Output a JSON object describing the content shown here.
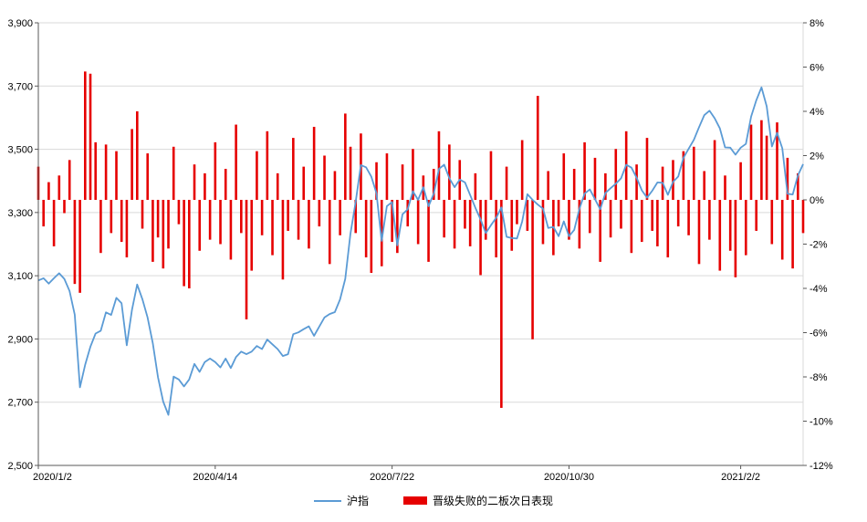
{
  "chart_data": {
    "type": "combo",
    "title": "",
    "x_tick_labels": [
      "2020/1/2",
      "2020/4/14",
      "2020/7/22",
      "2020/10/30",
      "2021/2/2"
    ],
    "x_tick_indices": [
      0,
      34,
      68,
      102,
      135
    ],
    "left_axis": {
      "min": 2500,
      "max": 3900,
      "step": 200,
      "tick_labels": [
        "2,500",
        "2,700",
        "2,900",
        "3,100",
        "3,300",
        "3,500",
        "3,700",
        "3,900"
      ]
    },
    "right_axis": {
      "min": -12,
      "max": 8,
      "step": 2,
      "tick_labels": [
        "-12%",
        "-10%",
        "-8%",
        "-6%",
        "-4%",
        "-2%",
        "0%",
        "2%",
        "4%",
        "6%",
        "8%"
      ]
    },
    "legend_position": "bottom",
    "grid": true,
    "style": {
      "background": "#ffffff",
      "grid_color": "#d9d9d9",
      "axis_color": "#595959",
      "line_color": "#5b9bd5",
      "bar_color": "#e60000"
    },
    "series": [
      {
        "name": "沪指",
        "type": "line",
        "axis": "left",
        "color": "#5b9bd5",
        "values": [
          3085,
          3092,
          3075,
          3092,
          3108,
          3090,
          3052,
          2977,
          2747,
          2818,
          2875,
          2917,
          2926,
          2984,
          2976,
          3030,
          3013,
          2880,
          2992,
          3072,
          3026,
          2968,
          2887,
          2779,
          2702,
          2660,
          2781,
          2772,
          2750,
          2772,
          2821,
          2796,
          2827,
          2838,
          2827,
          2810,
          2838,
          2808,
          2843,
          2860,
          2852,
          2860,
          2878,
          2868,
          2898,
          2883,
          2868,
          2846,
          2852,
          2915,
          2921,
          2931,
          2940,
          2910,
          2939,
          2968,
          2979,
          2985,
          3025,
          3090,
          3233,
          3333,
          3450,
          3443,
          3414,
          3361,
          3210,
          3320,
          3333,
          3196,
          3294,
          3310,
          3367,
          3340,
          3380,
          3320,
          3360,
          3438,
          3451,
          3408,
          3380,
          3404,
          3395,
          3355,
          3315,
          3278,
          3235,
          3260,
          3283,
          3316,
          3223,
          3219,
          3218,
          3272,
          3358,
          3340,
          3325,
          3312,
          3251,
          3254,
          3225,
          3272,
          3225,
          3245,
          3312,
          3360,
          3373,
          3342,
          3310,
          3362,
          3377,
          3391,
          3408,
          3451,
          3442,
          3410,
          3370,
          3347,
          3369,
          3395,
          3394,
          3356,
          3397,
          3414,
          3473,
          3502,
          3530,
          3570,
          3608,
          3622,
          3598,
          3566,
          3506,
          3505,
          3483,
          3505,
          3517,
          3603,
          3655,
          3696,
          3636,
          3509,
          3552,
          3503,
          3359,
          3357,
          3417,
          3453
        ]
      },
      {
        "name": "晋级失败的二板次日表现",
        "type": "bar",
        "axis": "right",
        "color": "#e60000",
        "values": [
          1.5,
          -1.2,
          0.8,
          -2.1,
          1.1,
          -0.6,
          1.8,
          -3.8,
          -4.2,
          5.8,
          5.7,
          2.6,
          -2.4,
          2.5,
          -1.5,
          2.2,
          -1.9,
          -2.6,
          3.2,
          4.0,
          -1.3,
          2.1,
          -2.8,
          -1.7,
          -3.1,
          -2.2,
          2.4,
          -1.1,
          -3.9,
          -4.0,
          1.6,
          -2.3,
          1.2,
          -1.8,
          2.6,
          -2.0,
          1.4,
          -2.7,
          3.4,
          -1.5,
          -5.4,
          -3.2,
          2.2,
          -1.6,
          3.1,
          -2.5,
          1.2,
          -3.6,
          -1.4,
          2.8,
          -1.8,
          1.5,
          -2.2,
          3.3,
          -1.2,
          2.0,
          -2.9,
          1.3,
          -1.6,
          3.9,
          2.4,
          -1.5,
          3.0,
          -2.6,
          -3.3,
          1.7,
          -3.0,
          2.1,
          -1.9,
          -2.4,
          1.6,
          -1.2,
          2.3,
          -2.0,
          1.1,
          -2.8,
          1.4,
          3.1,
          -1.7,
          2.5,
          -2.2,
          1.8,
          -1.3,
          -2.1,
          1.2,
          -3.4,
          -1.8,
          2.2,
          -2.6,
          -9.4,
          1.5,
          -2.3,
          -1.1,
          2.7,
          -1.4,
          -6.3,
          4.7,
          -2.0,
          1.3,
          -2.5,
          -1.2,
          2.1,
          -1.8,
          1.4,
          -2.2,
          2.6,
          -1.5,
          1.9,
          -2.8,
          1.2,
          -1.7,
          2.3,
          -1.3,
          3.1,
          -2.4,
          1.6,
          -1.9,
          2.8,
          -1.4,
          -2.1,
          1.5,
          -2.6,
          1.8,
          -1.2,
          2.2,
          -1.6,
          2.4,
          -2.9,
          1.3,
          -1.8,
          2.7,
          -3.2,
          1.1,
          -2.3,
          -3.5,
          1.7,
          -2.5,
          3.4,
          -1.4,
          3.6,
          2.9,
          -2.0,
          3.5,
          -2.7,
          1.9,
          -3.1,
          1.2,
          -1.5
        ]
      }
    ]
  }
}
